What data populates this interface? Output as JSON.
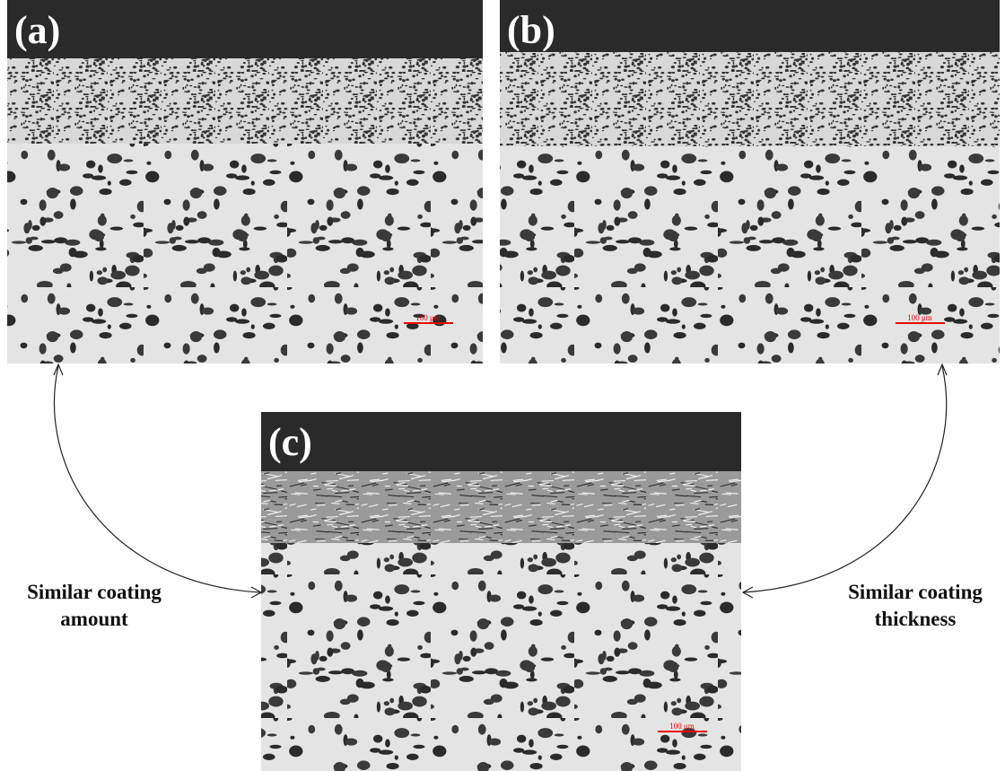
{
  "panels": [
    {
      "label": "(a)",
      "scale_bar": "100 μm"
    },
    {
      "label": "(b)",
      "scale_bar": "100 μm"
    },
    {
      "label": "(c)",
      "scale_bar": "100 μm"
    }
  ],
  "annotations": [
    {
      "lines": [
        "Similar coating",
        "amount"
      ]
    },
    {
      "lines": [
        "Similar coating",
        "thickness"
      ]
    }
  ]
}
